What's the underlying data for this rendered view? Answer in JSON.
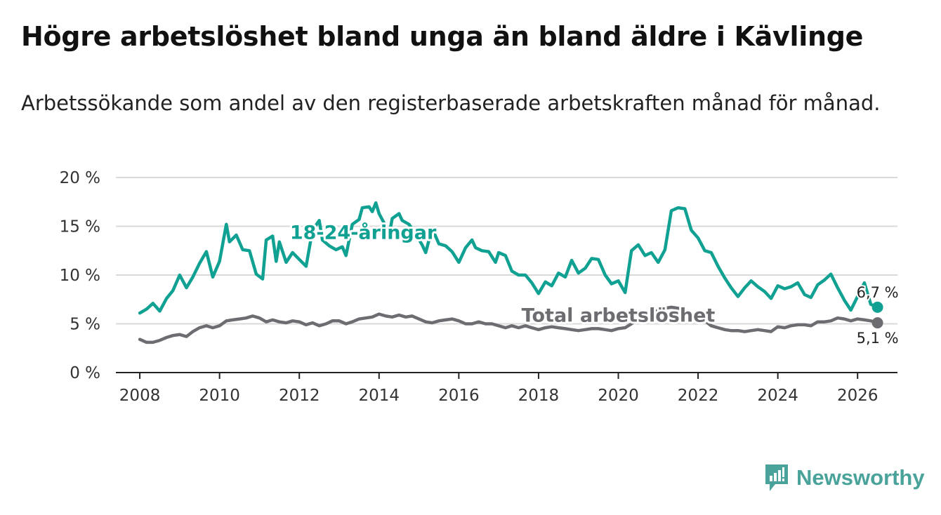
{
  "title": "Högre arbetslöshet bland unga än bland äldre i Kävlinge",
  "subtitle": "Arbetssökande som andel av den registerbaserade arbetskraften månad för månad.",
  "brand": {
    "name": "Newsworthy",
    "icon": "newsworthy-logo-icon",
    "color": "#4aa39a"
  },
  "chart_data": {
    "type": "line",
    "title": "Högre arbetslöshet bland unga än bland äldre i Kävlinge",
    "subtitle": "Arbetssökande som andel av den registerbaserade arbetskraften månad för månad.",
    "xlabel": "",
    "ylabel": "",
    "xlim": [
      2007.4,
      2027.0
    ],
    "ylim": [
      0,
      20
    ],
    "x_ticks": [
      2008,
      2010,
      2012,
      2014,
      2016,
      2018,
      2020,
      2022,
      2024,
      2026
    ],
    "y_ticks": [
      {
        "value": 0,
        "label": "0 %"
      },
      {
        "value": 5,
        "label": "5 %"
      },
      {
        "value": 10,
        "label": "10 %"
      },
      {
        "value": 15,
        "label": "15 %"
      },
      {
        "value": 20,
        "label": "20 %"
      }
    ],
    "grid": "horizontal",
    "series": [
      {
        "name": "18-24-åringar",
        "color": "#10a192",
        "label": "18-24-åringar",
        "end_label": "6,7 %",
        "points": [
          [
            2008.0,
            6.1
          ],
          [
            2008.17,
            6.5
          ],
          [
            2008.33,
            7.1
          ],
          [
            2008.5,
            6.3
          ],
          [
            2008.67,
            7.6
          ],
          [
            2008.83,
            8.4
          ],
          [
            2009.0,
            10.0
          ],
          [
            2009.17,
            8.7
          ],
          [
            2009.33,
            9.8
          ],
          [
            2009.5,
            11.2
          ],
          [
            2009.67,
            12.4
          ],
          [
            2009.83,
            9.8
          ],
          [
            2010.0,
            11.4
          ],
          [
            2010.17,
            15.2
          ],
          [
            2010.25,
            13.4
          ],
          [
            2010.42,
            14.1
          ],
          [
            2010.58,
            12.6
          ],
          [
            2010.75,
            12.5
          ],
          [
            2010.92,
            10.1
          ],
          [
            2011.08,
            9.6
          ],
          [
            2011.17,
            13.6
          ],
          [
            2011.33,
            14.0
          ],
          [
            2011.42,
            11.4
          ],
          [
            2011.5,
            13.4
          ],
          [
            2011.67,
            11.3
          ],
          [
            2011.83,
            12.3
          ],
          [
            2012.0,
            11.6
          ],
          [
            2012.17,
            10.9
          ],
          [
            2012.33,
            14.6
          ],
          [
            2012.5,
            15.6
          ],
          [
            2012.58,
            13.6
          ],
          [
            2012.75,
            13.0
          ],
          [
            2012.92,
            12.6
          ],
          [
            2013.08,
            12.9
          ],
          [
            2013.17,
            12.0
          ],
          [
            2013.33,
            15.2
          ],
          [
            2013.5,
            15.7
          ],
          [
            2013.58,
            16.9
          ],
          [
            2013.75,
            17.0
          ],
          [
            2013.83,
            16.5
          ],
          [
            2013.92,
            17.4
          ],
          [
            2014.0,
            16.3
          ],
          [
            2014.17,
            15.0
          ],
          [
            2014.25,
            14.0
          ],
          [
            2014.33,
            15.8
          ],
          [
            2014.5,
            16.3
          ],
          [
            2014.58,
            15.6
          ],
          [
            2014.75,
            15.2
          ],
          [
            2014.92,
            14.2
          ],
          [
            2015.08,
            13.1
          ],
          [
            2015.17,
            12.3
          ],
          [
            2015.33,
            14.8
          ],
          [
            2015.5,
            13.2
          ],
          [
            2015.67,
            13.0
          ],
          [
            2015.83,
            12.4
          ],
          [
            2016.0,
            11.3
          ],
          [
            2016.17,
            12.8
          ],
          [
            2016.33,
            13.6
          ],
          [
            2016.42,
            12.8
          ],
          [
            2016.58,
            12.5
          ],
          [
            2016.75,
            12.4
          ],
          [
            2016.92,
            11.3
          ],
          [
            2017.0,
            12.3
          ],
          [
            2017.17,
            12.0
          ],
          [
            2017.33,
            10.4
          ],
          [
            2017.5,
            10.0
          ],
          [
            2017.67,
            10.0
          ],
          [
            2017.83,
            9.2
          ],
          [
            2018.0,
            8.1
          ],
          [
            2018.17,
            9.3
          ],
          [
            2018.33,
            8.9
          ],
          [
            2018.5,
            10.2
          ],
          [
            2018.67,
            9.8
          ],
          [
            2018.83,
            11.5
          ],
          [
            2019.0,
            10.2
          ],
          [
            2019.17,
            10.7
          ],
          [
            2019.33,
            11.7
          ],
          [
            2019.5,
            11.6
          ],
          [
            2019.67,
            10.0
          ],
          [
            2019.83,
            9.1
          ],
          [
            2020.0,
            9.4
          ],
          [
            2020.17,
            8.2
          ],
          [
            2020.33,
            12.5
          ],
          [
            2020.5,
            13.1
          ],
          [
            2020.67,
            12.0
          ],
          [
            2020.83,
            12.3
          ],
          [
            2021.0,
            11.3
          ],
          [
            2021.17,
            12.6
          ],
          [
            2021.33,
            16.6
          ],
          [
            2021.5,
            16.9
          ],
          [
            2021.67,
            16.8
          ],
          [
            2021.83,
            14.6
          ],
          [
            2022.0,
            13.8
          ],
          [
            2022.17,
            12.5
          ],
          [
            2022.33,
            12.3
          ],
          [
            2022.5,
            10.9
          ],
          [
            2022.67,
            9.7
          ],
          [
            2022.83,
            8.7
          ],
          [
            2023.0,
            7.8
          ],
          [
            2023.17,
            8.7
          ],
          [
            2023.33,
            9.4
          ],
          [
            2023.5,
            8.8
          ],
          [
            2023.67,
            8.3
          ],
          [
            2023.83,
            7.6
          ],
          [
            2024.0,
            8.9
          ],
          [
            2024.17,
            8.6
          ],
          [
            2024.33,
            8.8
          ],
          [
            2024.5,
            9.2
          ],
          [
            2024.67,
            8.0
          ],
          [
            2024.83,
            7.7
          ],
          [
            2025.0,
            9.0
          ],
          [
            2025.17,
            9.5
          ],
          [
            2025.33,
            10.1
          ],
          [
            2025.5,
            8.7
          ],
          [
            2025.67,
            7.4
          ],
          [
            2025.83,
            6.4
          ],
          [
            2026.0,
            7.8
          ],
          [
            2026.17,
            9.2
          ],
          [
            2026.33,
            7.0
          ],
          [
            2026.5,
            6.7
          ]
        ]
      },
      {
        "name": "Total arbetslöshet",
        "color": "#6d6c71",
        "label": "Total arbetslöshet",
        "end_label": "5,1 %",
        "points": [
          [
            2008.0,
            3.4
          ],
          [
            2008.17,
            3.1
          ],
          [
            2008.33,
            3.1
          ],
          [
            2008.5,
            3.3
          ],
          [
            2008.67,
            3.6
          ],
          [
            2008.83,
            3.8
          ],
          [
            2009.0,
            3.9
          ],
          [
            2009.17,
            3.7
          ],
          [
            2009.33,
            4.2
          ],
          [
            2009.5,
            4.6
          ],
          [
            2009.67,
            4.8
          ],
          [
            2009.83,
            4.6
          ],
          [
            2010.0,
            4.8
          ],
          [
            2010.17,
            5.3
          ],
          [
            2010.33,
            5.4
          ],
          [
            2010.5,
            5.5
          ],
          [
            2010.67,
            5.6
          ],
          [
            2010.83,
            5.8
          ],
          [
            2011.0,
            5.6
          ],
          [
            2011.17,
            5.2
          ],
          [
            2011.33,
            5.4
          ],
          [
            2011.5,
            5.2
          ],
          [
            2011.67,
            5.1
          ],
          [
            2011.83,
            5.3
          ],
          [
            2012.0,
            5.2
          ],
          [
            2012.17,
            4.9
          ],
          [
            2012.33,
            5.1
          ],
          [
            2012.5,
            4.8
          ],
          [
            2012.67,
            5.0
          ],
          [
            2012.83,
            5.3
          ],
          [
            2013.0,
            5.3
          ],
          [
            2013.17,
            5.0
          ],
          [
            2013.33,
            5.2
          ],
          [
            2013.5,
            5.5
          ],
          [
            2013.67,
            5.6
          ],
          [
            2013.83,
            5.7
          ],
          [
            2014.0,
            6.0
          ],
          [
            2014.17,
            5.8
          ],
          [
            2014.33,
            5.7
          ],
          [
            2014.5,
            5.9
          ],
          [
            2014.67,
            5.7
          ],
          [
            2014.83,
            5.8
          ],
          [
            2015.0,
            5.5
          ],
          [
            2015.17,
            5.2
          ],
          [
            2015.33,
            5.1
          ],
          [
            2015.5,
            5.3
          ],
          [
            2015.67,
            5.4
          ],
          [
            2015.83,
            5.5
          ],
          [
            2016.0,
            5.3
          ],
          [
            2016.17,
            5.0
          ],
          [
            2016.33,
            5.0
          ],
          [
            2016.5,
            5.2
          ],
          [
            2016.67,
            5.0
          ],
          [
            2016.83,
            5.0
          ],
          [
            2017.0,
            4.8
          ],
          [
            2017.17,
            4.6
          ],
          [
            2017.33,
            4.8
          ],
          [
            2017.5,
            4.6
          ],
          [
            2017.67,
            4.8
          ],
          [
            2017.83,
            4.6
          ],
          [
            2018.0,
            4.4
          ],
          [
            2018.17,
            4.6
          ],
          [
            2018.33,
            4.7
          ],
          [
            2018.5,
            4.6
          ],
          [
            2018.67,
            4.5
          ],
          [
            2018.83,
            4.4
          ],
          [
            2019.0,
            4.3
          ],
          [
            2019.17,
            4.4
          ],
          [
            2019.33,
            4.5
          ],
          [
            2019.5,
            4.5
          ],
          [
            2019.67,
            4.4
          ],
          [
            2019.83,
            4.3
          ],
          [
            2020.0,
            4.5
          ],
          [
            2020.17,
            4.6
          ],
          [
            2020.33,
            5.0
          ],
          [
            2020.5,
            5.5
          ],
          [
            2020.67,
            5.9
          ],
          [
            2020.83,
            6.0
          ],
          [
            2021.0,
            6.4
          ],
          [
            2021.17,
            6.6
          ],
          [
            2021.33,
            6.7
          ],
          [
            2021.5,
            6.6
          ],
          [
            2021.67,
            6.3
          ],
          [
            2021.83,
            6.0
          ],
          [
            2022.0,
            5.7
          ],
          [
            2022.17,
            5.3
          ],
          [
            2022.33,
            4.8
          ],
          [
            2022.5,
            4.6
          ],
          [
            2022.67,
            4.4
          ],
          [
            2022.83,
            4.3
          ],
          [
            2023.0,
            4.3
          ],
          [
            2023.17,
            4.2
          ],
          [
            2023.33,
            4.3
          ],
          [
            2023.5,
            4.4
          ],
          [
            2023.67,
            4.3
          ],
          [
            2023.83,
            4.2
          ],
          [
            2024.0,
            4.7
          ],
          [
            2024.17,
            4.6
          ],
          [
            2024.33,
            4.8
          ],
          [
            2024.5,
            4.9
          ],
          [
            2024.67,
            4.9
          ],
          [
            2024.83,
            4.8
          ],
          [
            2025.0,
            5.2
          ],
          [
            2025.17,
            5.2
          ],
          [
            2025.33,
            5.3
          ],
          [
            2025.5,
            5.6
          ],
          [
            2025.67,
            5.5
          ],
          [
            2025.83,
            5.3
          ],
          [
            2026.0,
            5.5
          ],
          [
            2026.17,
            5.4
          ],
          [
            2026.33,
            5.3
          ],
          [
            2026.5,
            5.1
          ]
        ]
      }
    ]
  }
}
